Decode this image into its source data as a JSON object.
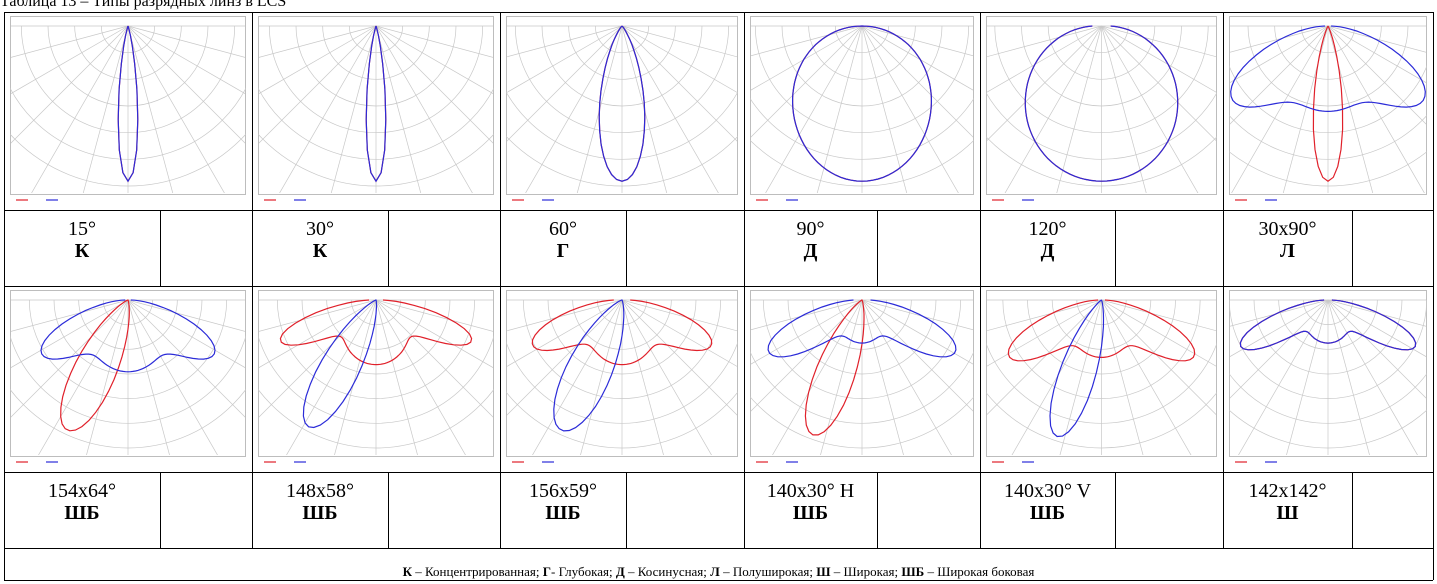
{
  "caption": "Таблица 13 – Типы разрядных линз в LCS",
  "colors": {
    "curve_c0": "#e0202a",
    "curve_c90": "#2b2bd8",
    "grid": "#c8c8c8",
    "border": "#000000"
  },
  "cells": [
    {
      "angle": "15°",
      "type": "К",
      "beam": "narrow"
    },
    {
      "angle": "30°",
      "type": "К",
      "beam": "narrow"
    },
    {
      "angle": "60°",
      "type": "Г",
      "beam": "deep"
    },
    {
      "angle": "90°",
      "type": "Д",
      "beam": "cosine"
    },
    {
      "angle": "120°",
      "type": "Д",
      "beam": "cosine-wide"
    },
    {
      "angle": "30x90°",
      "type": "Л",
      "beam": "semi-wide"
    },
    {
      "angle": "154x64°",
      "type": "ШБ",
      "beam": "side-left"
    },
    {
      "angle": "148x58°",
      "type": "ШБ",
      "beam": "side-left-2"
    },
    {
      "angle": "156x59°",
      "type": "ШБ",
      "beam": "side-right"
    },
    {
      "angle": "140x30° H",
      "type": "ШБ",
      "beam": "side-h"
    },
    {
      "angle": "140x30° V",
      "type": "ШБ",
      "beam": "side-v"
    },
    {
      "angle": "142x142°",
      "type": "Ш",
      "beam": "wide"
    }
  ],
  "legend": [
    {
      "abbr": "К",
      "text": " – Концентрированная; "
    },
    {
      "abbr": "Г",
      "text": "- Глубокая; "
    },
    {
      "abbr": "Д",
      "text": " – Косинусная; "
    },
    {
      "abbr": "Л",
      "text": " – Полуширокая; "
    },
    {
      "abbr": "Ш",
      "text": " – Широкая; "
    },
    {
      "abbr": "ШБ",
      "text": " – Широкая боковая"
    }
  ]
}
